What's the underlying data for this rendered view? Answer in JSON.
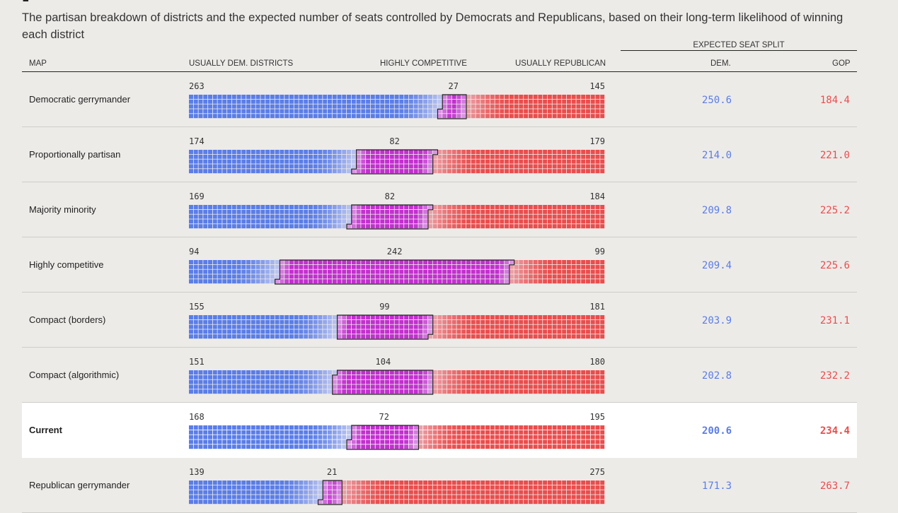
{
  "subtitle": "The partisan breakdown of districts and the expected number of seats controlled by Democrats and Republicans, based on their long-term likelihood of winning each district",
  "headers": {
    "map": "MAP",
    "dem_districts": "USUALLY DEM. DISTRICTS",
    "competitive": "HIGHLY COMPETITIVE",
    "rep_districts": "USUALLY REPUBLICAN",
    "seat_split": "EXPECTED SEAT SPLIT",
    "dem": "DEM.",
    "gop": "GOP"
  },
  "colors": {
    "dem": "#5a7de8",
    "gop": "#ea4d4d",
    "competitive": "#c22fcf"
  },
  "chart_data": {
    "type": "table",
    "total_seats": 435,
    "columns": [
      "Map",
      "Usually Dem. districts",
      "Highly competitive",
      "Usually Republican",
      "Expected Dem. seats",
      "Expected GOP seats"
    ],
    "rows": [
      {
        "map": "Democratic gerrymander",
        "dem": 263,
        "comp": 27,
        "rep": 145,
        "dem_seats": "250.6",
        "gop_seats": "184.4",
        "highlight": false
      },
      {
        "map": "Proportionally partisan",
        "dem": 174,
        "comp": 82,
        "rep": 179,
        "dem_seats": "214.0",
        "gop_seats": "221.0",
        "highlight": false
      },
      {
        "map": "Majority minority",
        "dem": 169,
        "comp": 82,
        "rep": 184,
        "dem_seats": "209.8",
        "gop_seats": "225.2",
        "highlight": false
      },
      {
        "map": "Highly competitive",
        "dem": 94,
        "comp": 242,
        "rep": 99,
        "dem_seats": "209.4",
        "gop_seats": "225.6",
        "highlight": false
      },
      {
        "map": "Compact (borders)",
        "dem": 155,
        "comp": 99,
        "rep": 181,
        "dem_seats": "203.9",
        "gop_seats": "231.1",
        "highlight": false
      },
      {
        "map": "Compact (algorithmic)",
        "dem": 151,
        "comp": 104,
        "rep": 180,
        "dem_seats": "202.8",
        "gop_seats": "232.2",
        "highlight": false
      },
      {
        "map": "Current",
        "dem": 168,
        "comp": 72,
        "rep": 195,
        "dem_seats": "200.6",
        "gop_seats": "234.4",
        "highlight": true
      },
      {
        "map": "Republican gerrymander",
        "dem": 139,
        "comp": 21,
        "rep": 275,
        "dem_seats": "171.3",
        "gop_seats": "263.7",
        "highlight": false
      }
    ]
  }
}
